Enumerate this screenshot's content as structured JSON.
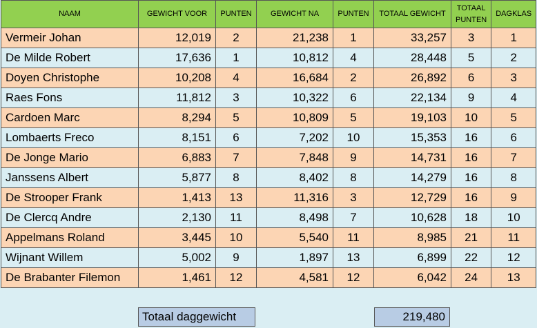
{
  "headers": [
    "NAAM",
    "GEWICHT VOOR",
    "PUNTEN",
    "GEWICHT NA",
    "PUNTEN",
    "TOTAAL GEWICHT",
    "TOTAAL PUNTEN",
    "DAGKLAS"
  ],
  "rows": [
    {
      "naam": "Vermeir Johan",
      "gewicht_voor": "12,019",
      "punten_voor": "2",
      "gewicht_na": "21,238",
      "punten_na": "1",
      "totaal_gewicht": "33,257",
      "totaal_punten": "3",
      "dagklas": "1"
    },
    {
      "naam": "De Milde Robert",
      "gewicht_voor": "17,636",
      "punten_voor": "1",
      "gewicht_na": "10,812",
      "punten_na": "4",
      "totaal_gewicht": "28,448",
      "totaal_punten": "5",
      "dagklas": "2"
    },
    {
      "naam": "Doyen Christophe",
      "gewicht_voor": "10,208",
      "punten_voor": "4",
      "gewicht_na": "16,684",
      "punten_na": "2",
      "totaal_gewicht": "26,892",
      "totaal_punten": "6",
      "dagklas": "3"
    },
    {
      "naam": "Raes Fons",
      "gewicht_voor": "11,812",
      "punten_voor": "3",
      "gewicht_na": "10,322",
      "punten_na": "6",
      "totaal_gewicht": "22,134",
      "totaal_punten": "9",
      "dagklas": "4"
    },
    {
      "naam": "Cardoen Marc",
      "gewicht_voor": "8,294",
      "punten_voor": "5",
      "gewicht_na": "10,809",
      "punten_na": "5",
      "totaal_gewicht": "19,103",
      "totaal_punten": "10",
      "dagklas": "5"
    },
    {
      "naam": "Lombaerts Freco",
      "gewicht_voor": "8,151",
      "punten_voor": "6",
      "gewicht_na": "7,202",
      "punten_na": "10",
      "totaal_gewicht": "15,353",
      "totaal_punten": "16",
      "dagklas": "6"
    },
    {
      "naam": "De Jonge Mario",
      "gewicht_voor": "6,883",
      "punten_voor": "7",
      "gewicht_na": "7,848",
      "punten_na": "9",
      "totaal_gewicht": "14,731",
      "totaal_punten": "16",
      "dagklas": "7"
    },
    {
      "naam": "Janssens Albert",
      "gewicht_voor": "5,877",
      "punten_voor": "8",
      "gewicht_na": "8,402",
      "punten_na": "8",
      "totaal_gewicht": "14,279",
      "totaal_punten": "16",
      "dagklas": "8"
    },
    {
      "naam": "De Strooper Frank",
      "gewicht_voor": "1,413",
      "punten_voor": "13",
      "gewicht_na": "11,316",
      "punten_na": "3",
      "totaal_gewicht": "12,729",
      "totaal_punten": "16",
      "dagklas": "9"
    },
    {
      "naam": "De Clercq Andre",
      "gewicht_voor": "2,130",
      "punten_voor": "11",
      "gewicht_na": "8,498",
      "punten_na": "7",
      "totaal_gewicht": "10,628",
      "totaal_punten": "18",
      "dagklas": "10"
    },
    {
      "naam": "Appelmans Roland",
      "gewicht_voor": "3,445",
      "punten_voor": "10",
      "gewicht_na": "5,540",
      "punten_na": "11",
      "totaal_gewicht": "8,985",
      "totaal_punten": "21",
      "dagklas": "11"
    },
    {
      "naam": "Wijnant Willem",
      "gewicht_voor": "5,002",
      "punten_voor": "9",
      "gewicht_na": "1,897",
      "punten_na": "13",
      "totaal_gewicht": "6,899",
      "totaal_punten": "22",
      "dagklas": "12"
    },
    {
      "naam": "De Brabanter Filemon",
      "gewicht_voor": "1,461",
      "punten_voor": "12",
      "gewicht_na": "4,581",
      "punten_na": "12",
      "totaal_gewicht": "6,042",
      "totaal_punten": "24",
      "dagklas": "13"
    }
  ],
  "footer": {
    "label": "Totaal daggewicht",
    "value": "219,480"
  },
  "colors": {
    "header": "#92d050",
    "row_odd": "#fcd5b4",
    "row_even": "#daeef3",
    "total_box": "#b8cce4"
  }
}
